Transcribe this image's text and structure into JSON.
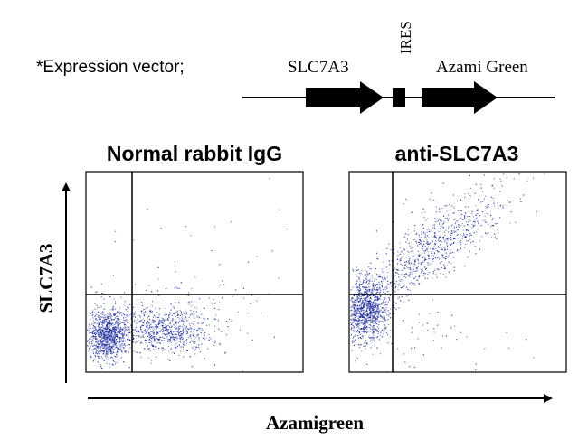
{
  "header": {
    "prefix": "*Expression vector;",
    "gene": "SLC7A3",
    "ires": "IRES",
    "reporter": "Azami Green"
  },
  "plots": [
    {
      "title": "Normal rabbit IgG"
    },
    {
      "title": "anti-SLC7A3"
    }
  ],
  "axes": {
    "y_label": "SLC7A3",
    "x_label": "Azamigreen"
  },
  "colors": {
    "dots": "#1a2a9a",
    "ink": "#000000"
  }
}
